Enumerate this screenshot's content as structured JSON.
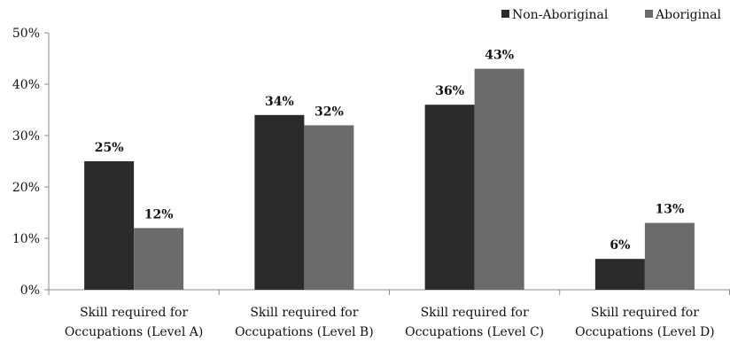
{
  "chart_data": {
    "type": "bar",
    "categories": [
      [
        "Skill required for",
        "Occupations (Level A)"
      ],
      [
        "Skill required for",
        "Occupations (Level B)"
      ],
      [
        "Skill required for",
        "Occupations (Level C)"
      ],
      [
        "Skill required for",
        "Occupations (Level D)"
      ]
    ],
    "series": [
      {
        "name": "Non-Aboriginal",
        "color": "#2b2b2b",
        "values": [
          25,
          34,
          36,
          6
        ],
        "labels": [
          "25%",
          "34%",
          "36%",
          "6%"
        ]
      },
      {
        "name": "Aboriginal",
        "color": "#6b6b6b",
        "values": [
          12,
          32,
          43,
          13
        ],
        "labels": [
          "12%",
          "32%",
          "43%",
          "13%"
        ]
      }
    ],
    "ylim": [
      0,
      50
    ],
    "yticks": [
      {
        "value": 0,
        "label": "0%"
      },
      {
        "value": 10,
        "label": "10%"
      },
      {
        "value": 20,
        "label": "20%"
      },
      {
        "value": 30,
        "label": "30%"
      },
      {
        "value": 40,
        "label": "40%"
      },
      {
        "value": 50,
        "label": "50%"
      }
    ],
    "grid": false,
    "legend_position": "top-right",
    "title": "",
    "xlabel": "",
    "ylabel": ""
  }
}
